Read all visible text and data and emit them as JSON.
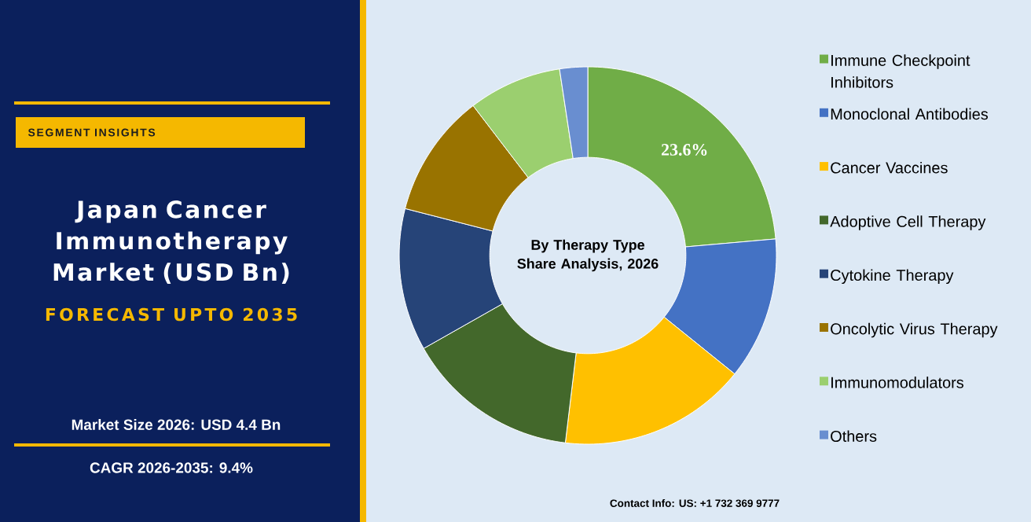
{
  "chart_data": {
    "type": "donut",
    "title": "Japan Cancer Immunotherapy Market (USD Bn)",
    "subtitle": "FORECAST UPTO 2035",
    "categories": [
      "Immune Checkpoint Inhibitors",
      "Monoclonal Antibodies",
      "Cancer Vaccines",
      "Adoptive Cell Therapy",
      "Cytokine Therapy",
      "Oncolytic Virus Therapy",
      "Immunomodulators",
      "Others"
    ],
    "values": [
      23.6,
      12.2,
      16.1,
      14.9,
      12.2,
      10.6,
      8.0,
      2.4
    ],
    "colors": [
      "#70ad47",
      "#4472c4",
      "#ffc000",
      "#43682b",
      "#264478",
      "#997300",
      "#9bcf6f",
      "#698ed0"
    ],
    "value_labels": [
      "23.6%",
      null,
      null,
      null,
      null,
      null,
      null,
      null
    ],
    "legend": "right",
    "annotations": [
      "SEGMENT INSIGHTS",
      "By Therapy Type Share Analysis, 2026",
      "Market Size 2026: USD 4.4 Bn",
      "CAGR 2026-2035: 9.4%",
      "Contact Info: US: +1 732 369 9777"
    ]
  }
}
